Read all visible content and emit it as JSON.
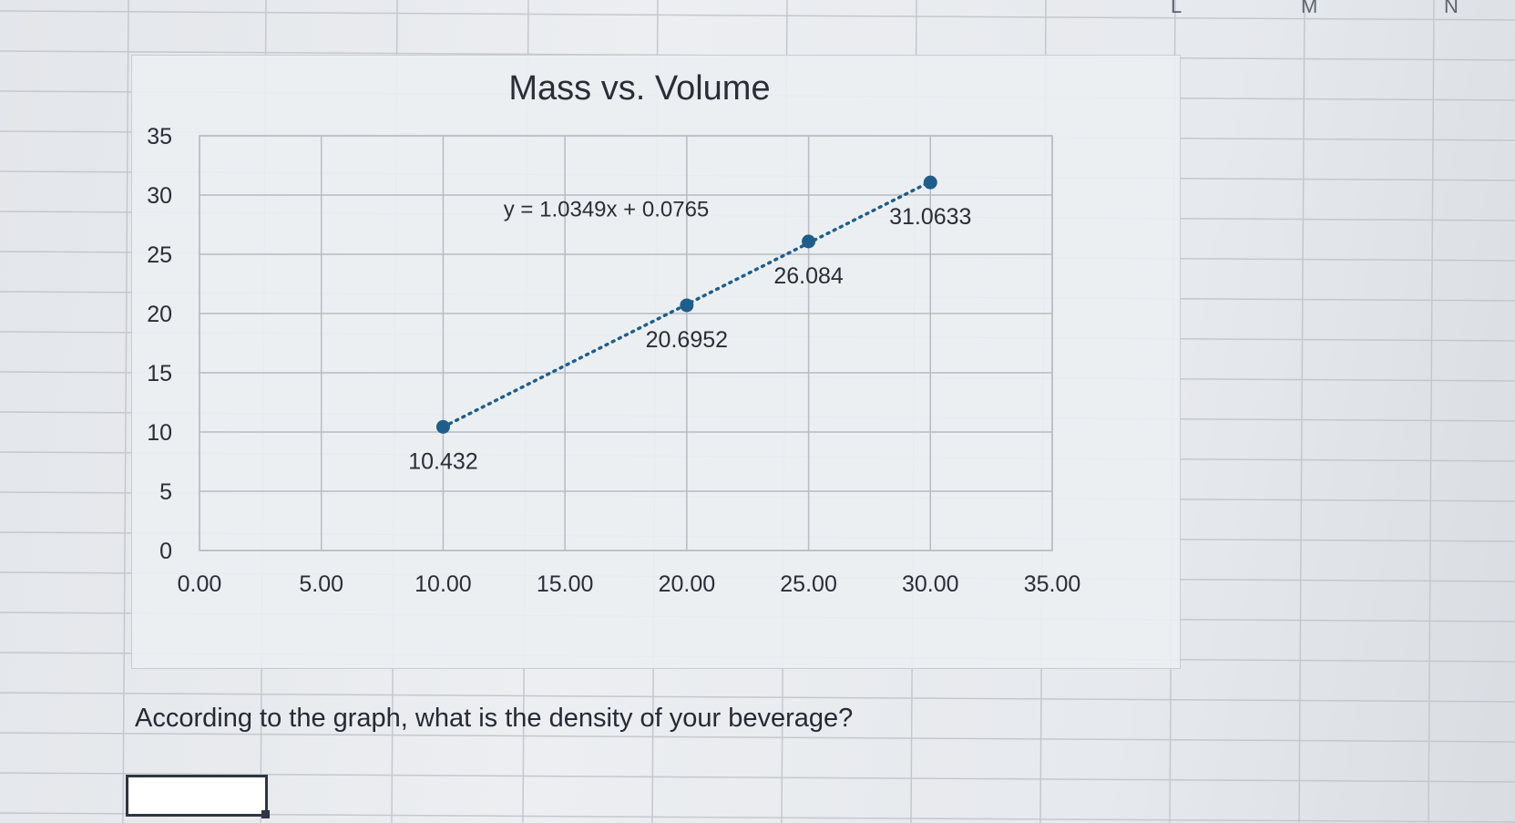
{
  "spreadsheet": {
    "visible_column_letters": [
      "L",
      "M",
      "N"
    ],
    "question": "According to the graph, what is the density of your beverage?",
    "answer_value": ""
  },
  "chart_data": {
    "type": "scatter",
    "title": "Mass vs. Volume",
    "xlabel": "",
    "ylabel": "",
    "xlim": [
      0,
      35
    ],
    "ylim": [
      0,
      35
    ],
    "x_ticks": [
      "0.00",
      "5.00",
      "10.00",
      "15.00",
      "20.00",
      "25.00",
      "30.00",
      "35.00"
    ],
    "y_ticks": [
      "0",
      "5",
      "10",
      "15",
      "20",
      "25",
      "30",
      "35"
    ],
    "grid": true,
    "legend": "none",
    "series": [
      {
        "x": [
          10.0,
          20.0,
          25.0,
          30.0
        ],
        "y": [
          10.432,
          20.6952,
          26.084,
          31.0633
        ],
        "labels": [
          "10.432",
          "20.6952",
          "26.084",
          "31.0633"
        ],
        "color": "#1f5e8a"
      }
    ],
    "trendline": {
      "style": "dotted",
      "equation": "y = 1.0349x + 0.0765",
      "slope": 1.0349,
      "intercept": 0.0765,
      "x_range": [
        10.0,
        30.0
      ]
    }
  }
}
